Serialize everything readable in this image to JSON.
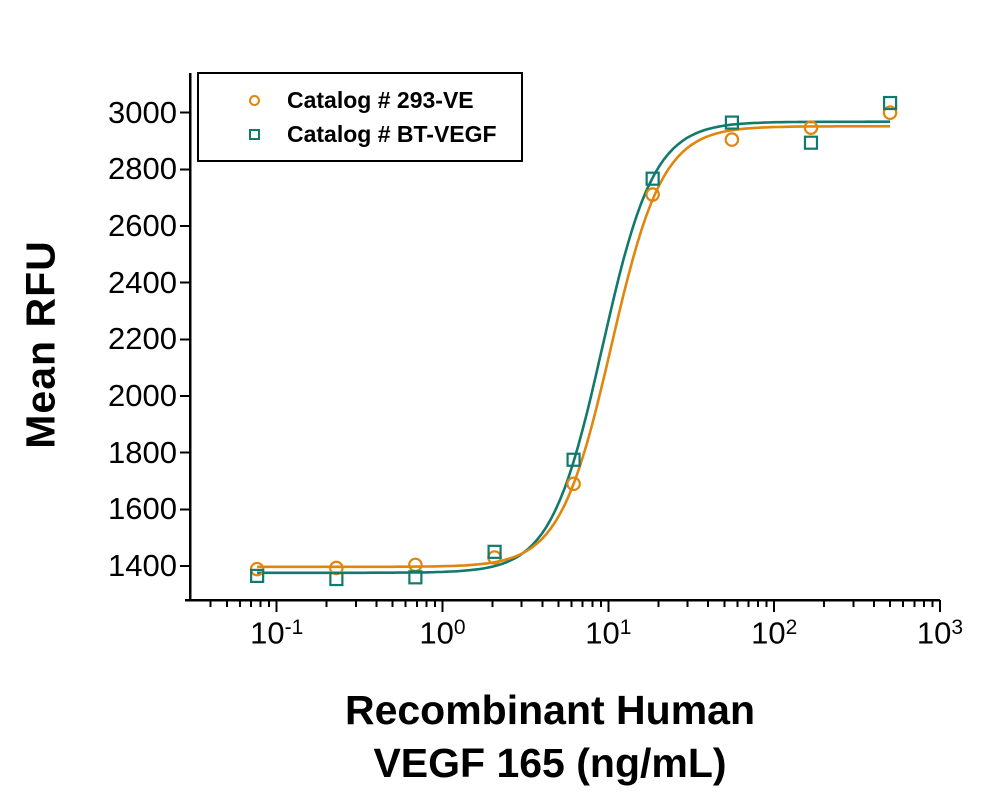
{
  "chart_data": {
    "type": "scatter",
    "x_scale": "log",
    "title": "",
    "ylabel": "Mean RFU",
    "xlabel_line1": "Recombinant Human",
    "xlabel_line2": "VEGF 165 (ng/mL)",
    "xlim": [
      0.03,
      1000
    ],
    "ylim": [
      1280,
      3140
    ],
    "y_ticks": [
      1400,
      1600,
      1800,
      2000,
      2200,
      2400,
      2600,
      2800,
      3000
    ],
    "x_tick_exponents": [
      -1,
      0,
      1,
      2,
      3
    ],
    "x_minor_ticks": true,
    "grid": false,
    "axis_color": "#000000",
    "legend": {
      "position": "top-left",
      "items": [
        {
          "label": "Catalog # 293-VE",
          "marker": "circle",
          "color": "#E0860D"
        },
        {
          "label": "Catalog # BT-VEGF",
          "marker": "square",
          "color": "#117A6D"
        }
      ]
    },
    "x": [
      0.0762,
      0.229,
      0.686,
      2.06,
      6.17,
      18.5,
      55.6,
      166.7,
      500
    ],
    "series": [
      {
        "name": "Catalog # 293-VE",
        "marker": "circle",
        "color": "#E0860D",
        "values": [
          1389,
          1393,
          1404,
          1430,
          1690,
          2711,
          2905,
          2947,
          3000
        ],
        "fit_4pl": {
          "bottom": 1397,
          "top": 2952,
          "ec50": 10.4,
          "hill": 2.8
        }
      },
      {
        "name": "Catalog # BT-VEGF",
        "marker": "square",
        "color": "#117A6D",
        "values": [
          1365,
          1354,
          1360,
          1450,
          1775,
          2767,
          2965,
          2894,
          3034
        ],
        "fit_4pl": {
          "bottom": 1376,
          "top": 2968,
          "ec50": 9.2,
          "hill": 2.8
        }
      }
    ]
  }
}
